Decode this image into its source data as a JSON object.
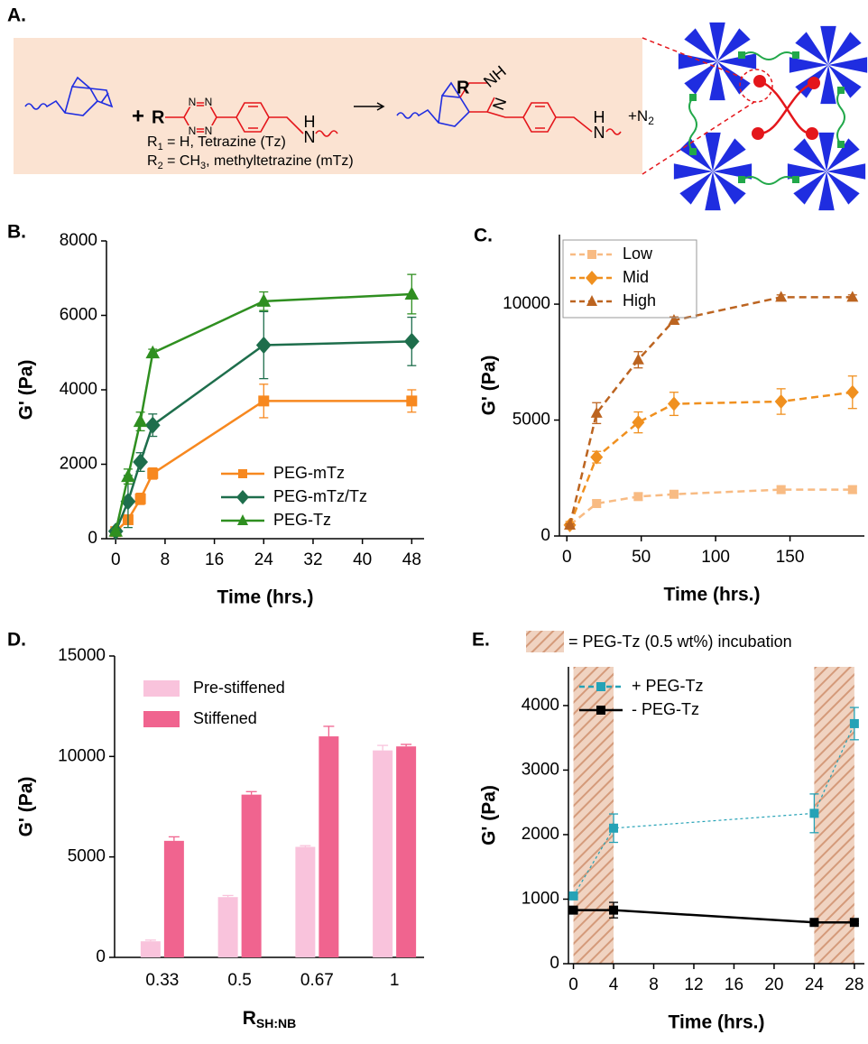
{
  "scheme": {
    "label": "A.",
    "plus": "+",
    "r_group": "R",
    "tetrazine_atoms": [
      "N",
      "N",
      "N",
      "N"
    ],
    "amine_atoms": [
      "N",
      "H"
    ],
    "product_r": "R",
    "product_atoms": [
      "NH",
      "N"
    ],
    "product_amine": [
      "N",
      "H"
    ],
    "byproduct": [
      "+N",
      "2"
    ],
    "notes": [
      [
        "R",
        "1",
        " = H, Tetrazine (Tz)"
      ],
      [
        "R",
        "2",
        " = CH",
        "3",
        ", methyltetrazine (mTz)"
      ]
    ]
  },
  "chart_data": [
    {
      "type": "line",
      "label": "B.",
      "x_label": "Time  (hrs.)",
      "y_label": "G' (Pa)",
      "xlim": [
        -1.5,
        50
      ],
      "ylim": [
        0,
        8000
      ],
      "xticks": [
        0,
        8,
        16,
        24,
        32,
        40,
        48
      ],
      "yticks": [
        0,
        2000,
        4000,
        6000,
        8000
      ],
      "legend": "lower right",
      "x": [
        0,
        2,
        4,
        6,
        24,
        48
      ],
      "series": [
        {
          "name": "PEG-mTz",
          "color": "#f7881f",
          "marker": "square",
          "values": [
            190,
            510,
            1070,
            1750,
            3700,
            3700
          ],
          "errors": [
            60,
            100,
            150,
            150,
            450,
            300
          ]
        },
        {
          "name": "PEG-mTz/Tz",
          "color": "#1e6e4c",
          "marker": "diamond",
          "values": [
            200,
            1000,
            2060,
            3050,
            5200,
            5300
          ],
          "errors": [
            60,
            700,
            250,
            300,
            900,
            650
          ]
        },
        {
          "name": "PEG-Tz",
          "color": "#2f8f20",
          "marker": "triangle",
          "values": [
            200,
            1670,
            3150,
            4990,
            6380,
            6570
          ],
          "errors": [
            60,
            200,
            250,
            100,
            250,
            530
          ]
        }
      ]
    },
    {
      "type": "line",
      "label": "C.",
      "x_label": "Time  (hrs.)",
      "y_label": "G' (Pa)",
      "xlim": [
        -5,
        200
      ],
      "ylim": [
        0,
        13000
      ],
      "xticks": [
        0,
        50,
        100,
        150
      ],
      "yticks": [
        0,
        5000,
        10000
      ],
      "legend": "upper left",
      "dashed": true,
      "x": [
        2,
        20,
        48,
        72,
        144,
        192
      ],
      "series": [
        {
          "name": "Low",
          "color": "#f8bb83",
          "marker": "square",
          "values": [
            470,
            1400,
            1700,
            1800,
            2000,
            2000
          ],
          "errors": [
            50,
            150,
            150,
            150,
            150,
            150
          ]
        },
        {
          "name": "Mid",
          "color": "#f0901f",
          "marker": "diamond",
          "values": [
            470,
            3400,
            4900,
            5700,
            5800,
            6200
          ],
          "errors": [
            50,
            250,
            450,
            500,
            550,
            700
          ]
        },
        {
          "name": "High",
          "color": "#bc6420",
          "marker": "triangle",
          "values": [
            470,
            5300,
            7600,
            9300,
            10300,
            10300
          ],
          "errors": [
            50,
            450,
            350,
            150,
            100,
            100
          ]
        }
      ]
    },
    {
      "type": "bar",
      "label": "D.",
      "x_label": {
        "main": "R",
        "sub": "SH:NB"
      },
      "y_label": "G' (Pa)",
      "ylim": [
        0,
        15000
      ],
      "yticks": [
        0,
        5000,
        10000,
        15000
      ],
      "legend": "upper left",
      "categories": [
        "0.33",
        "0.5",
        "0.67",
        "1"
      ],
      "series": [
        {
          "name": "Pre-stiffened",
          "color": "#f9c3dc",
          "values": [
            800,
            3000,
            5500,
            10300
          ],
          "errors": [
            60,
            80,
            60,
            250
          ]
        },
        {
          "name": "Stiffened",
          "color": "#f0648f",
          "values": [
            5800,
            8100,
            11000,
            10500
          ],
          "errors": [
            200,
            150,
            500,
            100
          ]
        }
      ]
    },
    {
      "type": "line",
      "label": "E.",
      "x_label": "Time  (hrs.)",
      "y_label": "G' (Pa)",
      "xlim": [
        -0.5,
        29
      ],
      "ylim": [
        0,
        4600
      ],
      "xticks": [
        0,
        4,
        8,
        12,
        16,
        20,
        24,
        28
      ],
      "yticks": [
        0,
        1000,
        2000,
        3000,
        4000
      ],
      "legend": "upper left",
      "shaded": [
        [
          0,
          4
        ],
        [
          24,
          28
        ]
      ],
      "shaded_label": "= PEG-Tz (0.5 wt%) incubation",
      "x": [
        0,
        4,
        24,
        28
      ],
      "series": [
        {
          "name": "+ PEG-Tz",
          "color": "#25a2b6",
          "marker": "square",
          "dashed": true,
          "values": [
            1050,
            2100,
            2330,
            3720
          ],
          "errors": [
            20,
            220,
            300,
            250
          ]
        },
        {
          "name": "- PEG-Tz",
          "color": "#000000",
          "marker": "square",
          "values": [
            830,
            830,
            640,
            640
          ],
          "errors": [
            20,
            120,
            20,
            20
          ]
        }
      ]
    }
  ]
}
